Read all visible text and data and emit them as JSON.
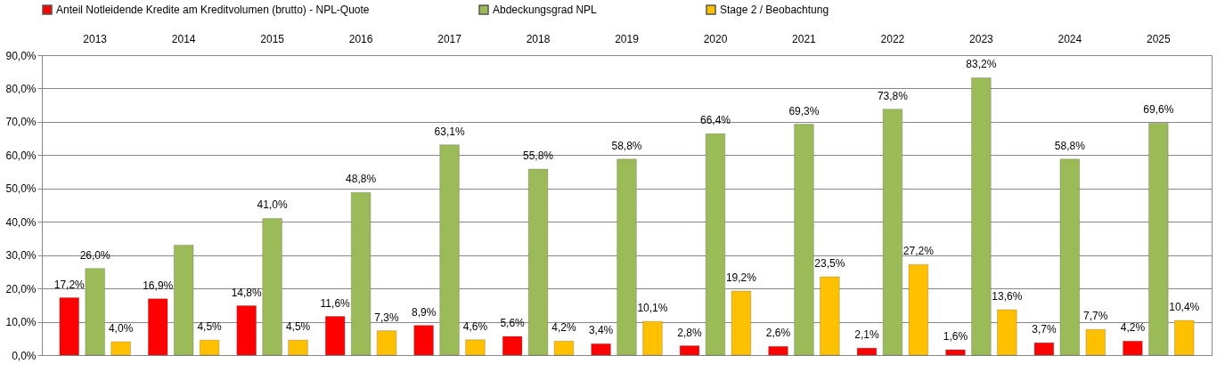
{
  "chart_data": {
    "type": "bar",
    "categories": [
      "2013",
      "2014",
      "2015",
      "2016",
      "2017",
      "2018",
      "2019",
      "2020",
      "2021",
      "2022",
      "2023",
      "2024",
      "2025"
    ],
    "series": [
      {
        "name": "Anteil Notleidende Kredite am Kreditvolumen (brutto) - NPL-Quote",
        "color": "#ff0000",
        "values": [
          17.2,
          16.9,
          14.8,
          11.6,
          8.9,
          5.6,
          3.4,
          2.8,
          2.6,
          2.1,
          1.6,
          3.7,
          4.2
        ],
        "value_labels": [
          "17,2%",
          "16,9%",
          "14,8%",
          "11,6%",
          "8,9%",
          "5,6%",
          "3,4%",
          "2,8%",
          "2,6%",
          "2,1%",
          "1,6%",
          "3,7%",
          "4,2%"
        ]
      },
      {
        "name": "Abdeckungsgrad NPL",
        "color": "#9bbb59",
        "values": [
          26.0,
          33,
          41.0,
          48.8,
          63.1,
          55.8,
          58.8,
          66.4,
          69.3,
          73.8,
          83.2,
          58.8,
          69.6
        ],
        "value_labels": [
          "26,0%",
          null,
          "41,0%",
          "48,8%",
          "63,1%",
          "55,8%",
          "58,8%",
          "66,4%",
          "69,3%",
          "73,8%",
          "83,2%",
          "58,8%",
          "69,6%"
        ]
      },
      {
        "name": "Stage 2 / Beobachtung",
        "color": "#ffc000",
        "values": [
          4.0,
          4.5,
          4.5,
          7.3,
          4.6,
          4.2,
          10.1,
          19.2,
          23.5,
          27.2,
          13.6,
          7.7,
          10.4
        ],
        "value_labels": [
          "4,0%",
          "4,5%",
          "4,5%",
          "7,3%",
          "4,6%",
          "4,2%",
          "10,1%",
          "19,2%",
          "23,5%",
          "27,2%",
          "13,6%",
          "7,7%",
          "10,4%"
        ]
      }
    ],
    "ylim": [
      0,
      90
    ],
    "yticks": [
      {
        "value": 0,
        "label": "0,0%"
      },
      {
        "value": 10,
        "label": "10,0%"
      },
      {
        "value": 20,
        "label": "20,0%"
      },
      {
        "value": 30,
        "label": "30,0%"
      },
      {
        "value": 40,
        "label": "40,0%"
      },
      {
        "value": 50,
        "label": "50,0%"
      },
      {
        "value": 60,
        "label": "60,0%"
      },
      {
        "value": 70,
        "label": "70,0%"
      },
      {
        "value": 80,
        "label": "80,0%"
      },
      {
        "value": 90,
        "label": "90,0%"
      }
    ],
    "grid": "y",
    "legend": "top"
  }
}
